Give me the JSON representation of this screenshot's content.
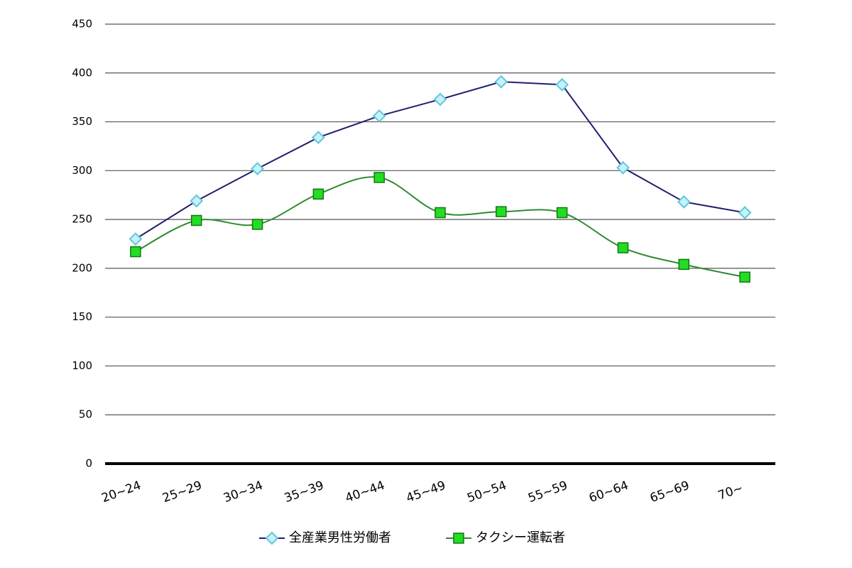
{
  "chart_data": {
    "type": "line",
    "categories": [
      "20~24",
      "25~29",
      "30~34",
      "35~39",
      "40~44",
      "45~49",
      "50~54",
      "55~59",
      "60~64",
      "65~69",
      "70~"
    ],
    "series": [
      {
        "name": "全産業男性労働者",
        "color": "#1f1f6e",
        "marker": "diamond",
        "marker_color": "#c8f0f8",
        "marker_stroke": "#5fc7dc",
        "smooth": false,
        "values": [
          230,
          269,
          302,
          334,
          356,
          373,
          391,
          388,
          303,
          268,
          257
        ]
      },
      {
        "name": "タクシー運転者",
        "color": "#2e8b2e",
        "marker": "square",
        "marker_color": "#22dd22",
        "marker_stroke": "#117711",
        "smooth": true,
        "values": [
          217,
          249,
          245,
          276,
          293,
          257,
          258,
          257,
          221,
          204,
          191
        ]
      }
    ],
    "ylim": [
      0,
      450
    ],
    "yticks": [
      0,
      50,
      100,
      150,
      200,
      250,
      300,
      350,
      400,
      450
    ],
    "grid": true,
    "legend": "bottom"
  }
}
